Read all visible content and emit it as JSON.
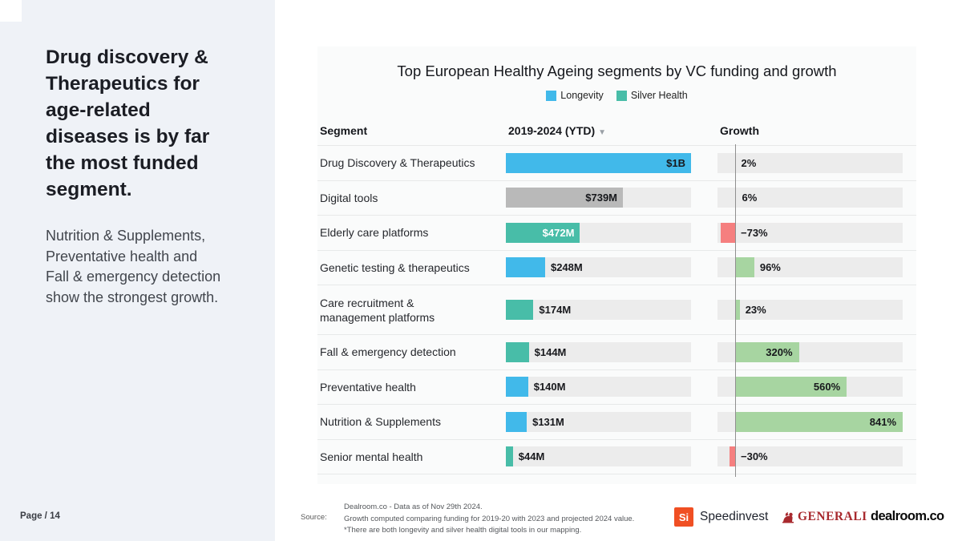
{
  "sidebar": {
    "title": "Drug discovery &\nTherapeutics for\nage-related\ndiseases is by far\nthe most funded\nsegment.",
    "subtitle": "Nutrition & Supplements,\nPreventative health and\nFall & emergency detection\nshow the strongest growth.",
    "page_label": "Page / 14"
  },
  "chart": {
    "title": "Top European Healthy Ageing segments by VC funding and growth",
    "columns": {
      "segment": "Segment",
      "funding": "2019-2024 (YTD)",
      "growth": "Growth"
    },
    "sort_icon": "▼",
    "colors": {
      "longevity": "#41b9ea",
      "silver": "#48bda8",
      "mixed": "#b9b9b9",
      "growth_pos": "#a7d5a1",
      "growth_neg": "#f57f7f",
      "track": "#ececec"
    }
  },
  "chart_data": {
    "type": "bar",
    "title": "Top European Healthy Ageing segments by VC funding and growth",
    "legend": [
      {
        "label": "Longevity",
        "color": "#41b9ea"
      },
      {
        "label": "Silver Health",
        "color": "#48bda8"
      }
    ],
    "columns": [
      "Segment",
      "2019-2024 (YTD)",
      "Growth"
    ],
    "funding_axis": {
      "unit": "USD million",
      "track_max_musd": 1164
    },
    "growth_axis": {
      "unit": "percent",
      "max_pct": 841,
      "zero_line": true
    },
    "rows": [
      {
        "segment": "Drug Discovery & Therapeutics",
        "group": "longevity",
        "funding_label": "$1B",
        "funding_musd": 1000,
        "funding_pct": 100,
        "funding_label_inside": true,
        "funding_label_white": false,
        "growth_label": "2%",
        "growth_pct": 2,
        "tall": false
      },
      {
        "segment": "Digital tools",
        "group": "mixed",
        "funding_label": "$739M",
        "funding_musd": 739,
        "funding_pct": 63.2,
        "funding_label_inside": true,
        "funding_label_white": false,
        "growth_label": "6%",
        "growth_pct": 6,
        "tall": false
      },
      {
        "segment": "Elderly care platforms",
        "group": "silver",
        "funding_label": "$472M",
        "funding_musd": 472,
        "funding_pct": 40,
        "funding_label_inside": true,
        "funding_label_white": true,
        "growth_label": "−73%",
        "growth_pct": -73,
        "tall": false
      },
      {
        "segment": "Genetic testing & therapeutics",
        "group": "longevity",
        "funding_label": "$248M",
        "funding_musd": 248,
        "funding_pct": 21.2,
        "funding_label_inside": false,
        "funding_label_white": false,
        "growth_label": "96%",
        "growth_pct": 96,
        "tall": false
      },
      {
        "segment": "Care recruitment &\nmanagement platforms",
        "group": "silver",
        "funding_label": "$174M",
        "funding_musd": 174,
        "funding_pct": 14.9,
        "funding_label_inside": false,
        "funding_label_white": false,
        "growth_label": "23%",
        "growth_pct": 23,
        "tall": true
      },
      {
        "segment": "Fall & emergency detection",
        "group": "silver",
        "funding_label": "$144M",
        "funding_musd": 144,
        "funding_pct": 12.4,
        "funding_label_inside": false,
        "funding_label_white": false,
        "growth_label": "320%",
        "growth_pct": 320,
        "tall": false
      },
      {
        "segment": "Preventative health",
        "group": "longevity",
        "funding_label": "$140M",
        "funding_musd": 140,
        "funding_pct": 12.0,
        "funding_label_inside": false,
        "funding_label_white": false,
        "growth_label": "560%",
        "growth_pct": 560,
        "tall": false
      },
      {
        "segment": "Nutrition & Supplements",
        "group": "longevity",
        "funding_label": "$131M",
        "funding_musd": 131,
        "funding_pct": 11.3,
        "funding_label_inside": false,
        "funding_label_white": false,
        "growth_label": "841%",
        "growth_pct": 841,
        "tall": false
      },
      {
        "segment": "Senior mental health",
        "group": "silver",
        "funding_label": "$44M",
        "funding_musd": 44,
        "funding_pct": 3.8,
        "funding_label_inside": false,
        "funding_label_white": false,
        "growth_label": "−30%",
        "growth_pct": -30,
        "tall": false
      }
    ]
  },
  "footer": {
    "source_label": "Source:",
    "source_lines": [
      "Dealroom.co - Data as of Nov 29th 2024.",
      "Growth computed comparing funding for 2019-20 with 2023 and projected 2024 value.",
      "*There are both longevity and silver health digital tools in our mapping."
    ],
    "logos": {
      "speedinvest_mark": "Si",
      "speedinvest": "Speedinvest",
      "generali": "GENERALI",
      "dealroom": "dealroom.co"
    }
  }
}
